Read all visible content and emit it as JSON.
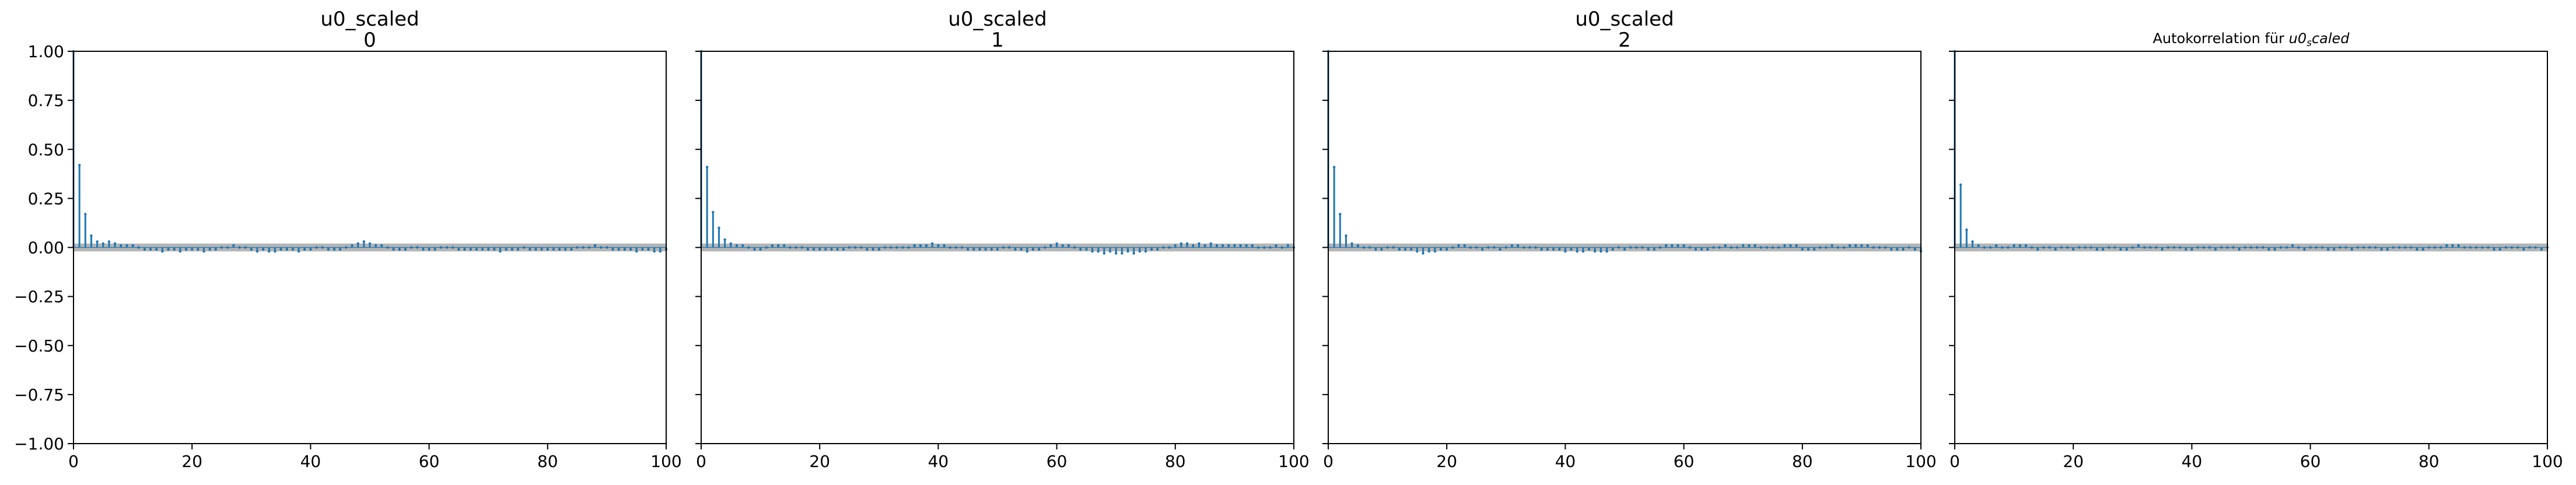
{
  "colors": {
    "stem": "#1f77b4",
    "band": "#b5b5b5",
    "axis": "#000000",
    "background": "#ffffff"
  },
  "chart_data": [
    {
      "type": "bar",
      "chart_kind": "autocorrelation stem plot",
      "title_line1": "u0_scaled",
      "title_line2": "0",
      "xlim": [
        0,
        100
      ],
      "ylim": [
        -1.0,
        1.0
      ],
      "x_ticks": [
        "0",
        "20",
        "40",
        "60",
        "80",
        "100"
      ],
      "y_ticks": [
        "−1.00",
        "−0.75",
        "−0.50",
        "−0.25",
        "0.00",
        "0.25",
        "0.50",
        "0.75",
        "1.00"
      ],
      "show_y_tick_labels": true,
      "confidence_band": 0.02,
      "lags": [
        0,
        1,
        2,
        3,
        4,
        5,
        6,
        7,
        8,
        9,
        10,
        11,
        12,
        13,
        14,
        15,
        16,
        17,
        18,
        19,
        20,
        21,
        22,
        23,
        24,
        25,
        26,
        27,
        28,
        29,
        30,
        31,
        32,
        33,
        34,
        35,
        36,
        37,
        38,
        39,
        40,
        41,
        42,
        43,
        44,
        45,
        46,
        47,
        48,
        49,
        50,
        51,
        52,
        53,
        54,
        55,
        56,
        57,
        58,
        59,
        60,
        61,
        62,
        63,
        64,
        65,
        66,
        67,
        68,
        69,
        70,
        71,
        72,
        73,
        74,
        75,
        76,
        77,
        78,
        79,
        80,
        81,
        82,
        83,
        84,
        85,
        86,
        87,
        88,
        89,
        90,
        91,
        92,
        93,
        94,
        95,
        96,
        97,
        98,
        99,
        100
      ],
      "values": [
        1.0,
        0.42,
        0.17,
        0.06,
        0.03,
        0.02,
        0.03,
        0.02,
        0.01,
        0.01,
        0.01,
        0.0,
        -0.01,
        -0.01,
        -0.01,
        -0.02,
        -0.01,
        -0.01,
        -0.02,
        -0.01,
        -0.01,
        -0.01,
        -0.02,
        -0.01,
        -0.01,
        0.0,
        0.0,
        0.01,
        0.0,
        0.0,
        -0.01,
        -0.02,
        -0.01,
        -0.02,
        -0.02,
        -0.01,
        -0.01,
        -0.01,
        -0.02,
        -0.01,
        -0.01,
        0.0,
        0.0,
        -0.01,
        -0.01,
        -0.01,
        0.0,
        0.01,
        0.02,
        0.03,
        0.02,
        0.01,
        0.01,
        0.0,
        -0.01,
        -0.01,
        -0.01,
        0.0,
        0.0,
        -0.01,
        -0.01,
        -0.01,
        0.0,
        0.0,
        0.0,
        -0.01,
        -0.01,
        -0.01,
        -0.01,
        -0.01,
        -0.01,
        -0.01,
        -0.02,
        -0.01,
        -0.01,
        -0.01,
        0.0,
        -0.01,
        -0.01,
        -0.01,
        -0.01,
        -0.01,
        -0.01,
        -0.01,
        -0.01,
        0.0,
        0.0,
        0.0,
        0.01,
        0.0,
        0.0,
        -0.01,
        -0.01,
        -0.01,
        -0.01,
        -0.02,
        -0.01,
        -0.01,
        -0.02,
        -0.02,
        -0.01
      ]
    },
    {
      "type": "bar",
      "chart_kind": "autocorrelation stem plot",
      "title_line1": "u0_scaled",
      "title_line2": "1",
      "xlim": [
        0,
        100
      ],
      "ylim": [
        -1.0,
        1.0
      ],
      "x_ticks": [
        "0",
        "20",
        "40",
        "60",
        "80",
        "100"
      ],
      "show_y_tick_labels": false,
      "confidence_band": 0.02,
      "values": [
        1.0,
        0.41,
        0.18,
        0.1,
        0.04,
        0.02,
        0.01,
        0.01,
        0.0,
        -0.01,
        -0.01,
        0.0,
        0.01,
        0.01,
        0.01,
        0.0,
        0.0,
        0.0,
        -0.01,
        -0.01,
        -0.01,
        -0.01,
        -0.01,
        -0.01,
        -0.01,
        0.0,
        0.0,
        0.0,
        -0.01,
        -0.01,
        -0.01,
        0.0,
        0.0,
        0.0,
        0.0,
        0.0,
        0.01,
        0.01,
        0.01,
        0.02,
        0.01,
        0.01,
        0.0,
        0.0,
        0.0,
        -0.01,
        -0.01,
        -0.01,
        -0.01,
        -0.01,
        -0.01,
        0.0,
        0.0,
        -0.01,
        -0.01,
        -0.02,
        -0.01,
        -0.01,
        0.0,
        0.01,
        0.02,
        0.01,
        0.01,
        0.0,
        -0.01,
        -0.01,
        -0.02,
        -0.02,
        -0.03,
        -0.02,
        -0.03,
        -0.03,
        -0.02,
        -0.03,
        -0.02,
        -0.02,
        -0.01,
        -0.01,
        0.0,
        0.0,
        0.01,
        0.02,
        0.02,
        0.01,
        0.02,
        0.01,
        0.02,
        0.01,
        0.01,
        0.01,
        0.01,
        0.01,
        0.01,
        0.01,
        0.0,
        0.0,
        0.0,
        0.01,
        0.0,
        0.01,
        0.0
      ]
    },
    {
      "type": "bar",
      "chart_kind": "autocorrelation stem plot",
      "title_line1": "u0_scaled",
      "title_line2": "2",
      "xlim": [
        0,
        100
      ],
      "ylim": [
        -1.0,
        1.0
      ],
      "x_ticks": [
        "0",
        "20",
        "40",
        "60",
        "80",
        "100"
      ],
      "show_y_tick_labels": false,
      "confidence_band": 0.02,
      "values": [
        1.0,
        0.41,
        0.17,
        0.06,
        0.02,
        0.01,
        0.0,
        0.0,
        -0.01,
        -0.01,
        0.0,
        0.0,
        -0.01,
        -0.01,
        -0.01,
        -0.02,
        -0.03,
        -0.02,
        -0.02,
        -0.01,
        -0.01,
        0.0,
        0.01,
        0.01,
        0.0,
        0.0,
        -0.01,
        0.0,
        0.0,
        -0.01,
        0.0,
        0.01,
        0.01,
        0.0,
        0.0,
        0.0,
        -0.01,
        -0.01,
        -0.01,
        -0.01,
        -0.02,
        -0.01,
        -0.02,
        -0.02,
        -0.01,
        -0.02,
        -0.02,
        -0.02,
        -0.01,
        0.0,
        -0.01,
        0.0,
        0.0,
        0.0,
        -0.01,
        -0.01,
        0.0,
        0.01,
        0.01,
        0.01,
        0.01,
        0.0,
        -0.01,
        -0.01,
        -0.01,
        0.0,
        0.0,
        0.01,
        0.0,
        0.0,
        0.01,
        0.01,
        0.01,
        0.0,
        0.0,
        0.0,
        0.0,
        0.01,
        0.01,
        0.01,
        -0.01,
        -0.01,
        -0.01,
        0.0,
        0.0,
        0.01,
        0.0,
        0.0,
        0.01,
        0.01,
        0.01,
        0.01,
        0.0,
        0.0,
        0.0,
        -0.01,
        -0.01,
        -0.01,
        0.0,
        -0.01,
        -0.02
      ]
    },
    {
      "type": "bar",
      "chart_kind": "autocorrelation stem plot",
      "title_prefix": "Autokorrelation für ",
      "title_math": "u0",
      "title_math_sub": "s",
      "title_math_tail": "caled",
      "xlim": [
        0,
        100
      ],
      "ylim": [
        -1.0,
        1.0
      ],
      "x_ticks": [
        "0",
        "20",
        "40",
        "60",
        "80",
        "100"
      ],
      "show_y_tick_labels": false,
      "confidence_band": 0.02,
      "values": [
        1.0,
        0.32,
        0.09,
        0.03,
        0.01,
        0.0,
        0.0,
        0.01,
        0.0,
        0.0,
        0.01,
        0.01,
        0.01,
        0.0,
        -0.01,
        0.0,
        0.0,
        -0.01,
        0.0,
        0.0,
        -0.01,
        0.0,
        0.0,
        0.0,
        -0.01,
        -0.01,
        0.0,
        0.0,
        -0.01,
        -0.01,
        0.0,
        0.01,
        0.0,
        0.0,
        0.0,
        -0.01,
        0.0,
        0.0,
        0.0,
        -0.01,
        -0.01,
        0.0,
        0.0,
        0.0,
        -0.01,
        0.0,
        0.0,
        0.0,
        -0.01,
        0.0,
        0.0,
        0.0,
        0.0,
        -0.01,
        -0.01,
        0.0,
        0.0,
        0.01,
        0.0,
        -0.01,
        0.0,
        0.0,
        0.0,
        -0.01,
        -0.01,
        0.0,
        0.0,
        -0.01,
        0.0,
        0.0,
        0.0,
        0.0,
        -0.01,
        -0.01,
        0.0,
        0.0,
        0.0,
        0.0,
        -0.01,
        -0.01,
        0.0,
        0.0,
        0.0,
        0.01,
        0.01,
        0.01,
        0.0,
        0.0,
        0.0,
        0.0,
        0.0,
        -0.01,
        -0.01,
        0.0,
        0.0,
        0.0,
        -0.01,
        0.0,
        0.0,
        -0.01,
        0.0
      ]
    }
  ]
}
